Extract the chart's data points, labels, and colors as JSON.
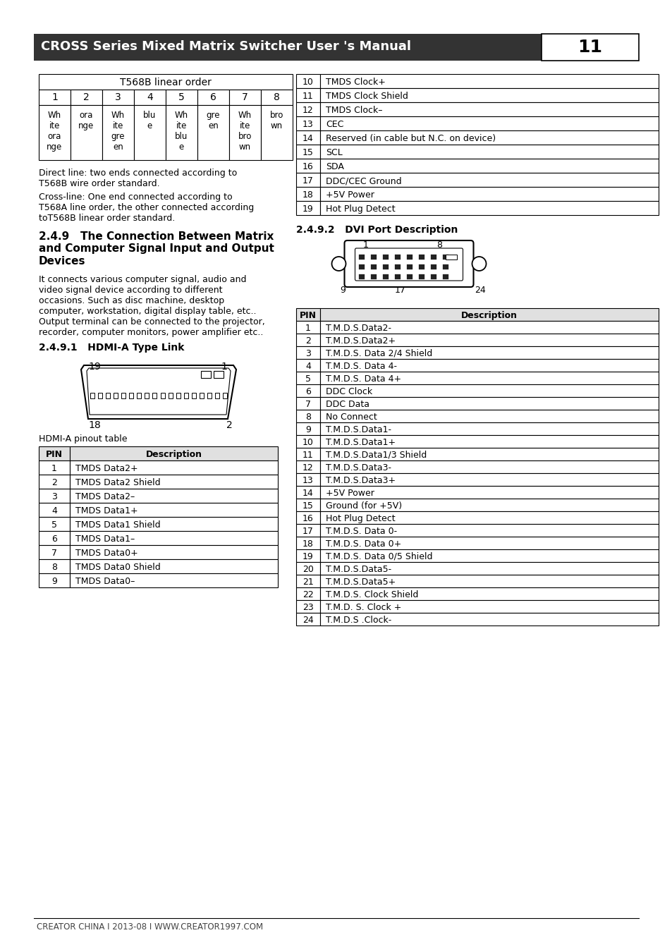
{
  "title": "CROSS Series Mixed Matrix Switcher User 's Manual",
  "page_num": "11",
  "header_bg": "#333333",
  "header_fg": "#ffffff",
  "t568b_title": "T568B linear order",
  "t568b_cols": [
    "1",
    "2",
    "3",
    "4",
    "5",
    "6",
    "7",
    "8"
  ],
  "t568b_data": [
    [
      "Wh\nite\nora\nnge",
      "ora\nnge",
      "Wh\nite\ngre\nen",
      "blu\ne",
      "Wh\nite\nblu\ne",
      "gre\nen",
      "Wh\nite\nbro\nwn",
      "bro\nwn"
    ]
  ],
  "direct_line_text": "Direct line: two ends connected according to\nT568B wire order standard.",
  "cross_line_text": "Cross-line: One end connected according to\nT568A line order, the other connected according\ntoT568B linear order standard.",
  "section_title": "2.4.9   The Connection Between Matrix\nand Computer Signal Input and Output\nDevices",
  "section_body": "It connects various computer signal, audio and\nvideo signal device according to different\noccasions. Such as disc machine, desktop\ncomputer, workstation, digital display table, etc..\nOutput terminal can be connected to the projector,\nrecorder, computer monitors, power amplifier etc..",
  "subsec_491": "2.4.9.1   HDMI-A Type Link",
  "hdmi_pinout_label": "HDMI-A pinout table",
  "hdmi_pin_col": "PIN",
  "hdmi_desc_col": "Description",
  "hdmi_pins": [
    [
      "1",
      "TMDS Data2+"
    ],
    [
      "2",
      "TMDS Data2 Shield"
    ],
    [
      "3",
      "TMDS Data2–"
    ],
    [
      "4",
      "TMDS Data1+"
    ],
    [
      "5",
      "TMDS Data1 Shield"
    ],
    [
      "6",
      "TMDS Data1–"
    ],
    [
      "7",
      "TMDS Data0+"
    ],
    [
      "8",
      "TMDS Data0 Shield"
    ],
    [
      "9",
      "TMDS Data0–"
    ]
  ],
  "right_top_pins": [
    [
      "10",
      "TMDS Clock+"
    ],
    [
      "11",
      "TMDS Clock Shield"
    ],
    [
      "12",
      "TMDS Clock–"
    ],
    [
      "13",
      "CEC"
    ],
    [
      "14",
      "Reserved (in cable but N.C. on device)"
    ],
    [
      "15",
      "SCL"
    ],
    [
      "16",
      "SDA"
    ],
    [
      "17",
      "DDC/CEC Ground"
    ],
    [
      "18",
      "+5V Power"
    ],
    [
      "19",
      "Hot Plug Detect"
    ]
  ],
  "subsec_492": "2.4.9.2   DVI Port Description",
  "dvi_pins": [
    [
      "1",
      "T.M.D.S.Data2-"
    ],
    [
      "2",
      "T.M.D.S.Data2+"
    ],
    [
      "3",
      "T.M.D.S. Data 2/4 Shield"
    ],
    [
      "4",
      "T.M.D.S. Data 4-"
    ],
    [
      "5",
      "T.M.D.S. Data 4+"
    ],
    [
      "6",
      "DDC Clock"
    ],
    [
      "7",
      "DDC Data"
    ],
    [
      "8",
      "No Connect"
    ],
    [
      "9",
      "T.M.D.S.Data1-"
    ],
    [
      "10",
      "T.M.D.S.Data1+"
    ],
    [
      "11",
      "T.M.D.S.Data1/3 Shield"
    ],
    [
      "12",
      "T.M.D.S.Data3-"
    ],
    [
      "13",
      "T.M.D.S.Data3+"
    ],
    [
      "14",
      "+5V Power"
    ],
    [
      "15",
      "Ground (for +5V)"
    ],
    [
      "16",
      "Hot Plug Detect"
    ],
    [
      "17",
      "T.M.D.S. Data 0-"
    ],
    [
      "18",
      "T.M.D.S. Data 0+"
    ],
    [
      "19",
      "T.M.D.S. Data 0/5 Shield"
    ],
    [
      "20",
      "T.M.D.S.Data5-"
    ],
    [
      "21",
      "T.M.D.S.Data5+"
    ],
    [
      "22",
      "T.M.D.S. Clock Shield"
    ],
    [
      "23",
      "T.M.D. S. Clock +"
    ],
    [
      "24",
      "T.M.D.S .Clock-"
    ]
  ],
  "footer_text": "CREATOR CHINA I 2013-08 I WWW.CREATOR1997.COM",
  "bg_color": "#ffffff"
}
